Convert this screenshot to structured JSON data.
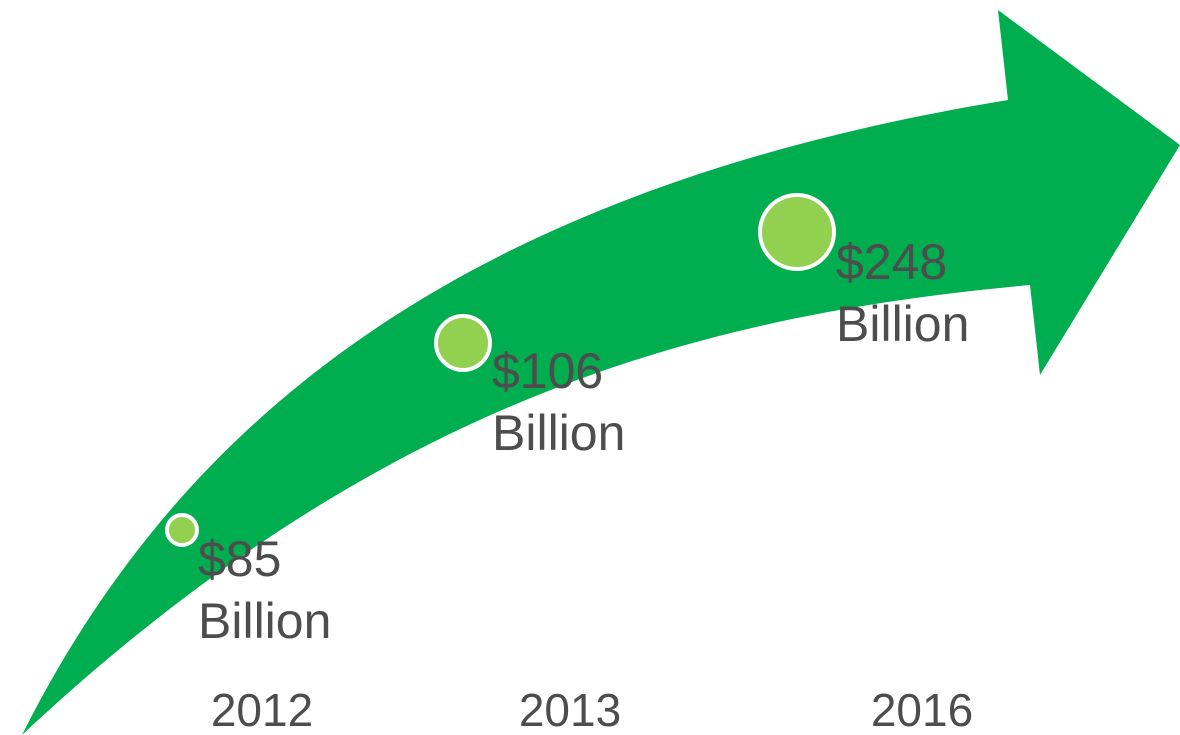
{
  "colors": {
    "arrow": "#00ad4f",
    "marker": "#92d050",
    "marker_stroke": "#ffffff",
    "text": "#4d4d4d"
  },
  "milestones": [
    {
      "year": "2012",
      "value": 85,
      "amount": "$85",
      "unit": "Billion"
    },
    {
      "year": "2013",
      "value": 106,
      "amount": "$106",
      "unit": "Billion"
    },
    {
      "year": "2016",
      "value": 248,
      "amount": "$248",
      "unit": "Billion"
    }
  ]
}
